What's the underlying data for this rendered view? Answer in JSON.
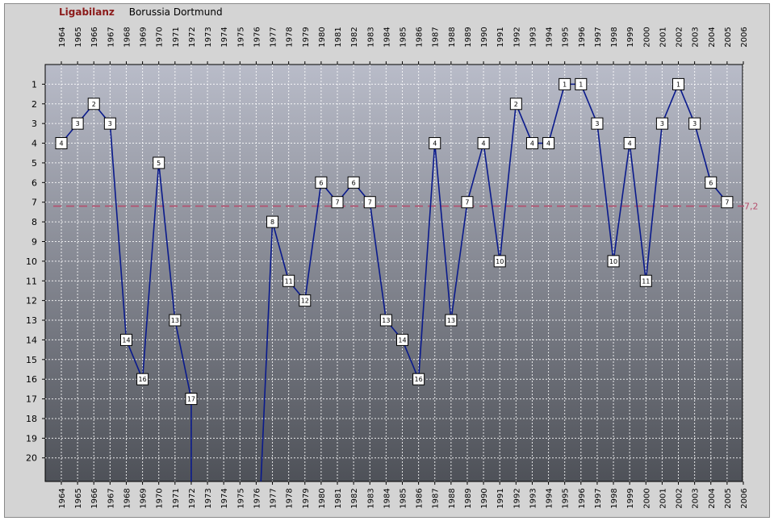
{
  "header": {
    "app_title": "Ligabilanz",
    "team": "Borussia Dortmund"
  },
  "colors": {
    "line": "#0a1a8c",
    "average": "#b5506e",
    "panel": "#d4d4d4",
    "plot_top": "#b9bcc9",
    "plot_bottom": "#4e5158",
    "grid": "#ffffff"
  },
  "chart_data": {
    "type": "line",
    "title": "",
    "xlabel": "",
    "ylabel": "",
    "x_ticks": [
      1964,
      1965,
      1966,
      1967,
      1968,
      1969,
      1970,
      1971,
      1972,
      1973,
      1974,
      1975,
      1976,
      1977,
      1978,
      1979,
      1980,
      1981,
      1982,
      1983,
      1984,
      1985,
      1986,
      1987,
      1988,
      1989,
      1990,
      1991,
      1992,
      1993,
      1994,
      1995,
      1996,
      1997,
      1998,
      1999,
      2000,
      2001,
      2002,
      2003,
      2004,
      2005,
      2006
    ],
    "y_ticks": [
      1,
      2,
      3,
      4,
      5,
      6,
      7,
      8,
      9,
      10,
      11,
      12,
      13,
      14,
      15,
      16,
      17,
      18,
      19,
      20
    ],
    "y_axis_inverted": true,
    "y_range": [
      0,
      21.2
    ],
    "grid": true,
    "segments": [
      {
        "points": [
          {
            "x": 1964,
            "y": 4
          },
          {
            "x": 1965,
            "y": 3
          },
          {
            "x": 1966,
            "y": 2
          },
          {
            "x": 1967,
            "y": 3
          },
          {
            "x": 1968,
            "y": 14
          },
          {
            "x": 1969,
            "y": 16
          },
          {
            "x": 1970,
            "y": 5
          },
          {
            "x": 1971,
            "y": 13
          },
          {
            "x": 1972,
            "y": 17
          }
        ]
      },
      {
        "points": [
          {
            "x": 1977,
            "y": 8
          },
          {
            "x": 1978,
            "y": 11
          },
          {
            "x": 1979,
            "y": 12
          },
          {
            "x": 1980,
            "y": 6
          },
          {
            "x": 1981,
            "y": 7
          },
          {
            "x": 1982,
            "y": 6
          },
          {
            "x": 1983,
            "y": 7
          },
          {
            "x": 1984,
            "y": 13
          },
          {
            "x": 1985,
            "y": 14
          },
          {
            "x": 1986,
            "y": 16
          },
          {
            "x": 1987,
            "y": 4
          },
          {
            "x": 1988,
            "y": 13
          },
          {
            "x": 1989,
            "y": 7
          },
          {
            "x": 1990,
            "y": 4
          },
          {
            "x": 1991,
            "y": 10
          },
          {
            "x": 1992,
            "y": 2
          },
          {
            "x": 1993,
            "y": 4
          },
          {
            "x": 1994,
            "y": 4
          },
          {
            "x": 1995,
            "y": 1
          },
          {
            "x": 1996,
            "y": 1
          },
          {
            "x": 1997,
            "y": 3
          },
          {
            "x": 1998,
            "y": 10
          },
          {
            "x": 1999,
            "y": 4
          },
          {
            "x": 2000,
            "y": 11
          },
          {
            "x": 2001,
            "y": 3
          },
          {
            "x": 2002,
            "y": 1
          },
          {
            "x": 2003,
            "y": 3
          },
          {
            "x": 2004,
            "y": 6
          },
          {
            "x": 2005,
            "y": 7
          }
        ]
      }
    ],
    "average": {
      "value": 7.2,
      "label": "7,2"
    }
  }
}
